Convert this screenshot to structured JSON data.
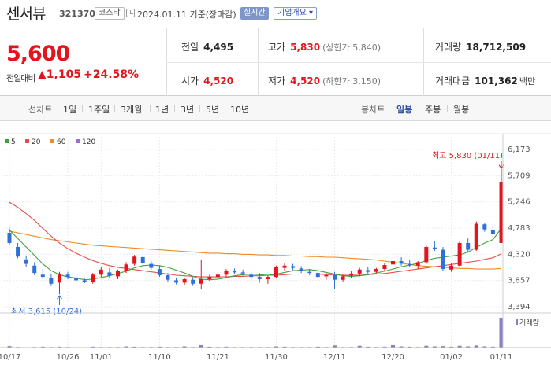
{
  "header": {
    "name": "센서뷰",
    "code": "321370",
    "market": "코스닥",
    "ref_date": "2024.01.11 기준(장마감)",
    "realtime_label": "실시간",
    "overview_label": "기업개요 ▾"
  },
  "price": {
    "current": "5,600",
    "change_label": "전일대비",
    "change_amount": "▲1,105",
    "change_rate": "+24.58%"
  },
  "stats": {
    "prev_label": "전일",
    "prev": "4,495",
    "open_label": "시가",
    "open": "4,520",
    "high_label": "고가",
    "high": "5,830",
    "high_note": "(상한가 5,840)",
    "low_label": "저가",
    "low": "4,520",
    "low_note": "(하한가 3,150)",
    "volume_label": "거래량",
    "volume": "18,712,509",
    "amount_label": "거래대금",
    "amount": "101,362",
    "amount_unit": "백만"
  },
  "tabs": {
    "line_head": "선차트",
    "line": [
      "1일",
      "1주일",
      "3개월",
      "1년",
      "3년",
      "5년",
      "10년"
    ],
    "candle_head": "봉차트",
    "candle": [
      "일봉",
      "주봉",
      "월봉"
    ],
    "active_candle": "일봉"
  },
  "colors": {
    "up": "#e4141d",
    "down": "#2f6fd8",
    "ma5": "#3ca33c",
    "ma20": "#e84d4d",
    "ma60": "#f08a24",
    "ma120": "#9a6fd0",
    "volume": "#8d7ec4"
  },
  "chart_data": {
    "type": "candlestick",
    "legend": [
      {
        "name": "5",
        "color": "#3ca33c"
      },
      {
        "name": "20",
        "color": "#e84d4d"
      },
      {
        "name": "60",
        "color": "#f08a24"
      },
      {
        "name": "120",
        "color": "#9a6fd0"
      }
    ],
    "y_ticks": [
      "6,173",
      "5,709",
      "5,246",
      "4,783",
      "4,320",
      "3,857",
      "3,394"
    ],
    "ylim": [
      3394,
      6173
    ],
    "x_ticks": [
      {
        "label": "10/17",
        "index": 0
      },
      {
        "label": "10/26",
        "index": 7
      },
      {
        "label": "11/01",
        "index": 11
      },
      {
        "label": "11/10",
        "index": 18
      },
      {
        "label": "11/21",
        "index": 25
      },
      {
        "label": "11/30",
        "index": 32
      },
      {
        "label": "12/11",
        "index": 39
      },
      {
        "label": "12/20",
        "index": 46
      },
      {
        "label": "01/02",
        "index": 53
      },
      {
        "label": "01/11",
        "index": 59
      }
    ],
    "high_annotation": "최고 5,830 (01/11)",
    "low_annotation": "최저 3,615 (10/24)",
    "volume_label": "거래량",
    "candles": [
      [
        4700,
        4780,
        4480,
        4520
      ],
      [
        4450,
        4520,
        4250,
        4280
      ],
      [
        4230,
        4300,
        4100,
        4150
      ],
      [
        4120,
        4180,
        3950,
        3990
      ],
      [
        3960,
        4060,
        3880,
        3920
      ],
      [
        3900,
        3980,
        3760,
        3800
      ],
      [
        3820,
        4010,
        3615,
        3980
      ],
      [
        3960,
        4010,
        3880,
        3920
      ],
      [
        3900,
        3960,
        3830,
        3860
      ],
      [
        3860,
        3900,
        3810,
        3830
      ],
      [
        3830,
        3990,
        3800,
        3960
      ],
      [
        3960,
        4090,
        3920,
        4050
      ],
      [
        4000,
        4080,
        3900,
        3940
      ],
      [
        3930,
        4050,
        3880,
        4020
      ],
      [
        4020,
        4180,
        3990,
        4140
      ],
      [
        4150,
        4310,
        4120,
        4280
      ],
      [
        4270,
        4290,
        4150,
        4170
      ],
      [
        4150,
        4200,
        4050,
        4080
      ],
      [
        4060,
        4120,
        3920,
        3950
      ],
      [
        3950,
        3990,
        3840,
        3870
      ],
      [
        3860,
        3900,
        3790,
        3820
      ],
      [
        3820,
        3910,
        3780,
        3880
      ],
      [
        3870,
        3920,
        3760,
        3800
      ],
      [
        3800,
        4230,
        3700,
        3880
      ],
      [
        3880,
        3960,
        3850,
        3920
      ],
      [
        3920,
        4010,
        3880,
        3960
      ],
      [
        3960,
        4060,
        3930,
        4020
      ],
      [
        4020,
        4070,
        3970,
        4000
      ],
      [
        4000,
        4050,
        3940,
        3980
      ],
      [
        3960,
        4000,
        3880,
        3920
      ],
      [
        3920,
        3990,
        3820,
        3880
      ],
      [
        3880,
        3950,
        3800,
        3920
      ],
      [
        3920,
        4120,
        3900,
        4090
      ],
      [
        4080,
        4160,
        4030,
        4120
      ],
      [
        4110,
        4150,
        4040,
        4080
      ],
      [
        4070,
        4110,
        3990,
        4020
      ],
      [
        4010,
        4060,
        3950,
        3990
      ],
      [
        3990,
        4020,
        3890,
        3920
      ],
      [
        3930,
        3990,
        3870,
        3950
      ],
      [
        3950,
        4010,
        3700,
        3870
      ],
      [
        3870,
        3960,
        3840,
        3930
      ],
      [
        3940,
        4020,
        3900,
        3980
      ],
      [
        3980,
        4080,
        3930,
        4050
      ],
      [
        4040,
        4100,
        3970,
        4010
      ],
      [
        4010,
        4080,
        3980,
        4060
      ],
      [
        4060,
        4160,
        4020,
        4130
      ],
      [
        4140,
        4250,
        4100,
        4200
      ],
      [
        4200,
        4270,
        4120,
        4160
      ],
      [
        4150,
        4220,
        4090,
        4120
      ],
      [
        4120,
        4200,
        4060,
        4180
      ],
      [
        4180,
        4480,
        4150,
        4450
      ],
      [
        4440,
        4560,
        4380,
        4410
      ],
      [
        4400,
        4450,
        4030,
        4060
      ],
      [
        4050,
        4160,
        4010,
        4120
      ],
      [
        4120,
        4550,
        4100,
        4520
      ],
      [
        4520,
        4600,
        4350,
        4400
      ],
      [
        4400,
        4900,
        4380,
        4860
      ],
      [
        4850,
        4880,
        4720,
        4760
      ],
      [
        4750,
        4850,
        4650,
        4680
      ],
      [
        4520,
        5830,
        4520,
        5600
      ]
    ],
    "ma5": [
      4750,
      4600,
      4450,
      4300,
      4150,
      4030,
      3960,
      3920,
      3900,
      3870,
      3880,
      3910,
      3940,
      3980,
      4020,
      4080,
      4120,
      4130,
      4120,
      4090,
      4040,
      3990,
      3930,
      3880,
      3870,
      3880,
      3910,
      3940,
      3960,
      3970,
      3960,
      3950,
      3970,
      4000,
      4030,
      4040,
      4050,
      4030,
      4000,
      3970,
      3940,
      3930,
      3940,
      3960,
      3990,
      4020,
      4060,
      4100,
      4130,
      4160,
      4210,
      4250,
      4270,
      4290,
      4310,
      4360,
      4440,
      4520,
      4580,
      4780
    ],
    "ma20": [
      5240,
      5150,
      5040,
      4920,
      4780,
      4640,
      4520,
      4420,
      4340,
      4270,
      4210,
      4160,
      4120,
      4090,
      4070,
      4050,
      4030,
      4010,
      3990,
      3970,
      3950,
      3940,
      3930,
      3920,
      3920,
      3920,
      3920,
      3930,
      3930,
      3940,
      3940,
      3950,
      3950,
      3960,
      3970,
      3970,
      3970,
      3970,
      3960,
      3960,
      3950,
      3950,
      3950,
      3960,
      3970,
      3980,
      4000,
      4020,
      4040,
      4060,
      4080,
      4100,
      4120,
      4140,
      4160,
      4180,
      4200,
      4230,
      4260,
      4330
    ],
    "ma60": [
      4730,
      4700,
      4670,
      4640,
      4610,
      4580,
      4560,
      4540,
      4520,
      4500,
      4480,
      4470,
      4460,
      4450,
      4440,
      4430,
      4420,
      4410,
      4400,
      4390,
      4380,
      4370,
      4360,
      4350,
      4340,
      4340,
      4330,
      4330,
      4320,
      4320,
      4310,
      4310,
      4300,
      4300,
      4290,
      4290,
      4280,
      4280,
      4270,
      4270,
      4260,
      4250,
      4240,
      4230,
      4220,
      4200,
      4180,
      4160,
      4140,
      4120,
      4110,
      4100,
      4090,
      4080,
      4070,
      4070,
      4060,
      4060,
      4060,
      4070
    ],
    "volume": [
      0.05,
      0.02,
      0.01,
      0.02,
      0.03,
      0.02,
      0.03,
      0.02,
      0.01,
      0.01,
      0.03,
      0.02,
      0.02,
      0.02,
      0.04,
      0.03,
      0.02,
      0.02,
      0.03,
      0.02,
      0.02,
      0.04,
      0.02,
      0.08,
      0.03,
      0.02,
      0.03,
      0.02,
      0.02,
      0.02,
      0.02,
      0.02,
      0.04,
      0.03,
      0.02,
      0.02,
      0.02,
      0.03,
      0.02,
      0.07,
      0.02,
      0.02,
      0.06,
      0.03,
      0.02,
      0.03,
      0.08,
      0.04,
      0.03,
      0.02,
      0.06,
      0.04,
      0.05,
      0.03,
      0.06,
      0.04,
      0.07,
      0.04,
      0.03,
      1.0
    ]
  }
}
